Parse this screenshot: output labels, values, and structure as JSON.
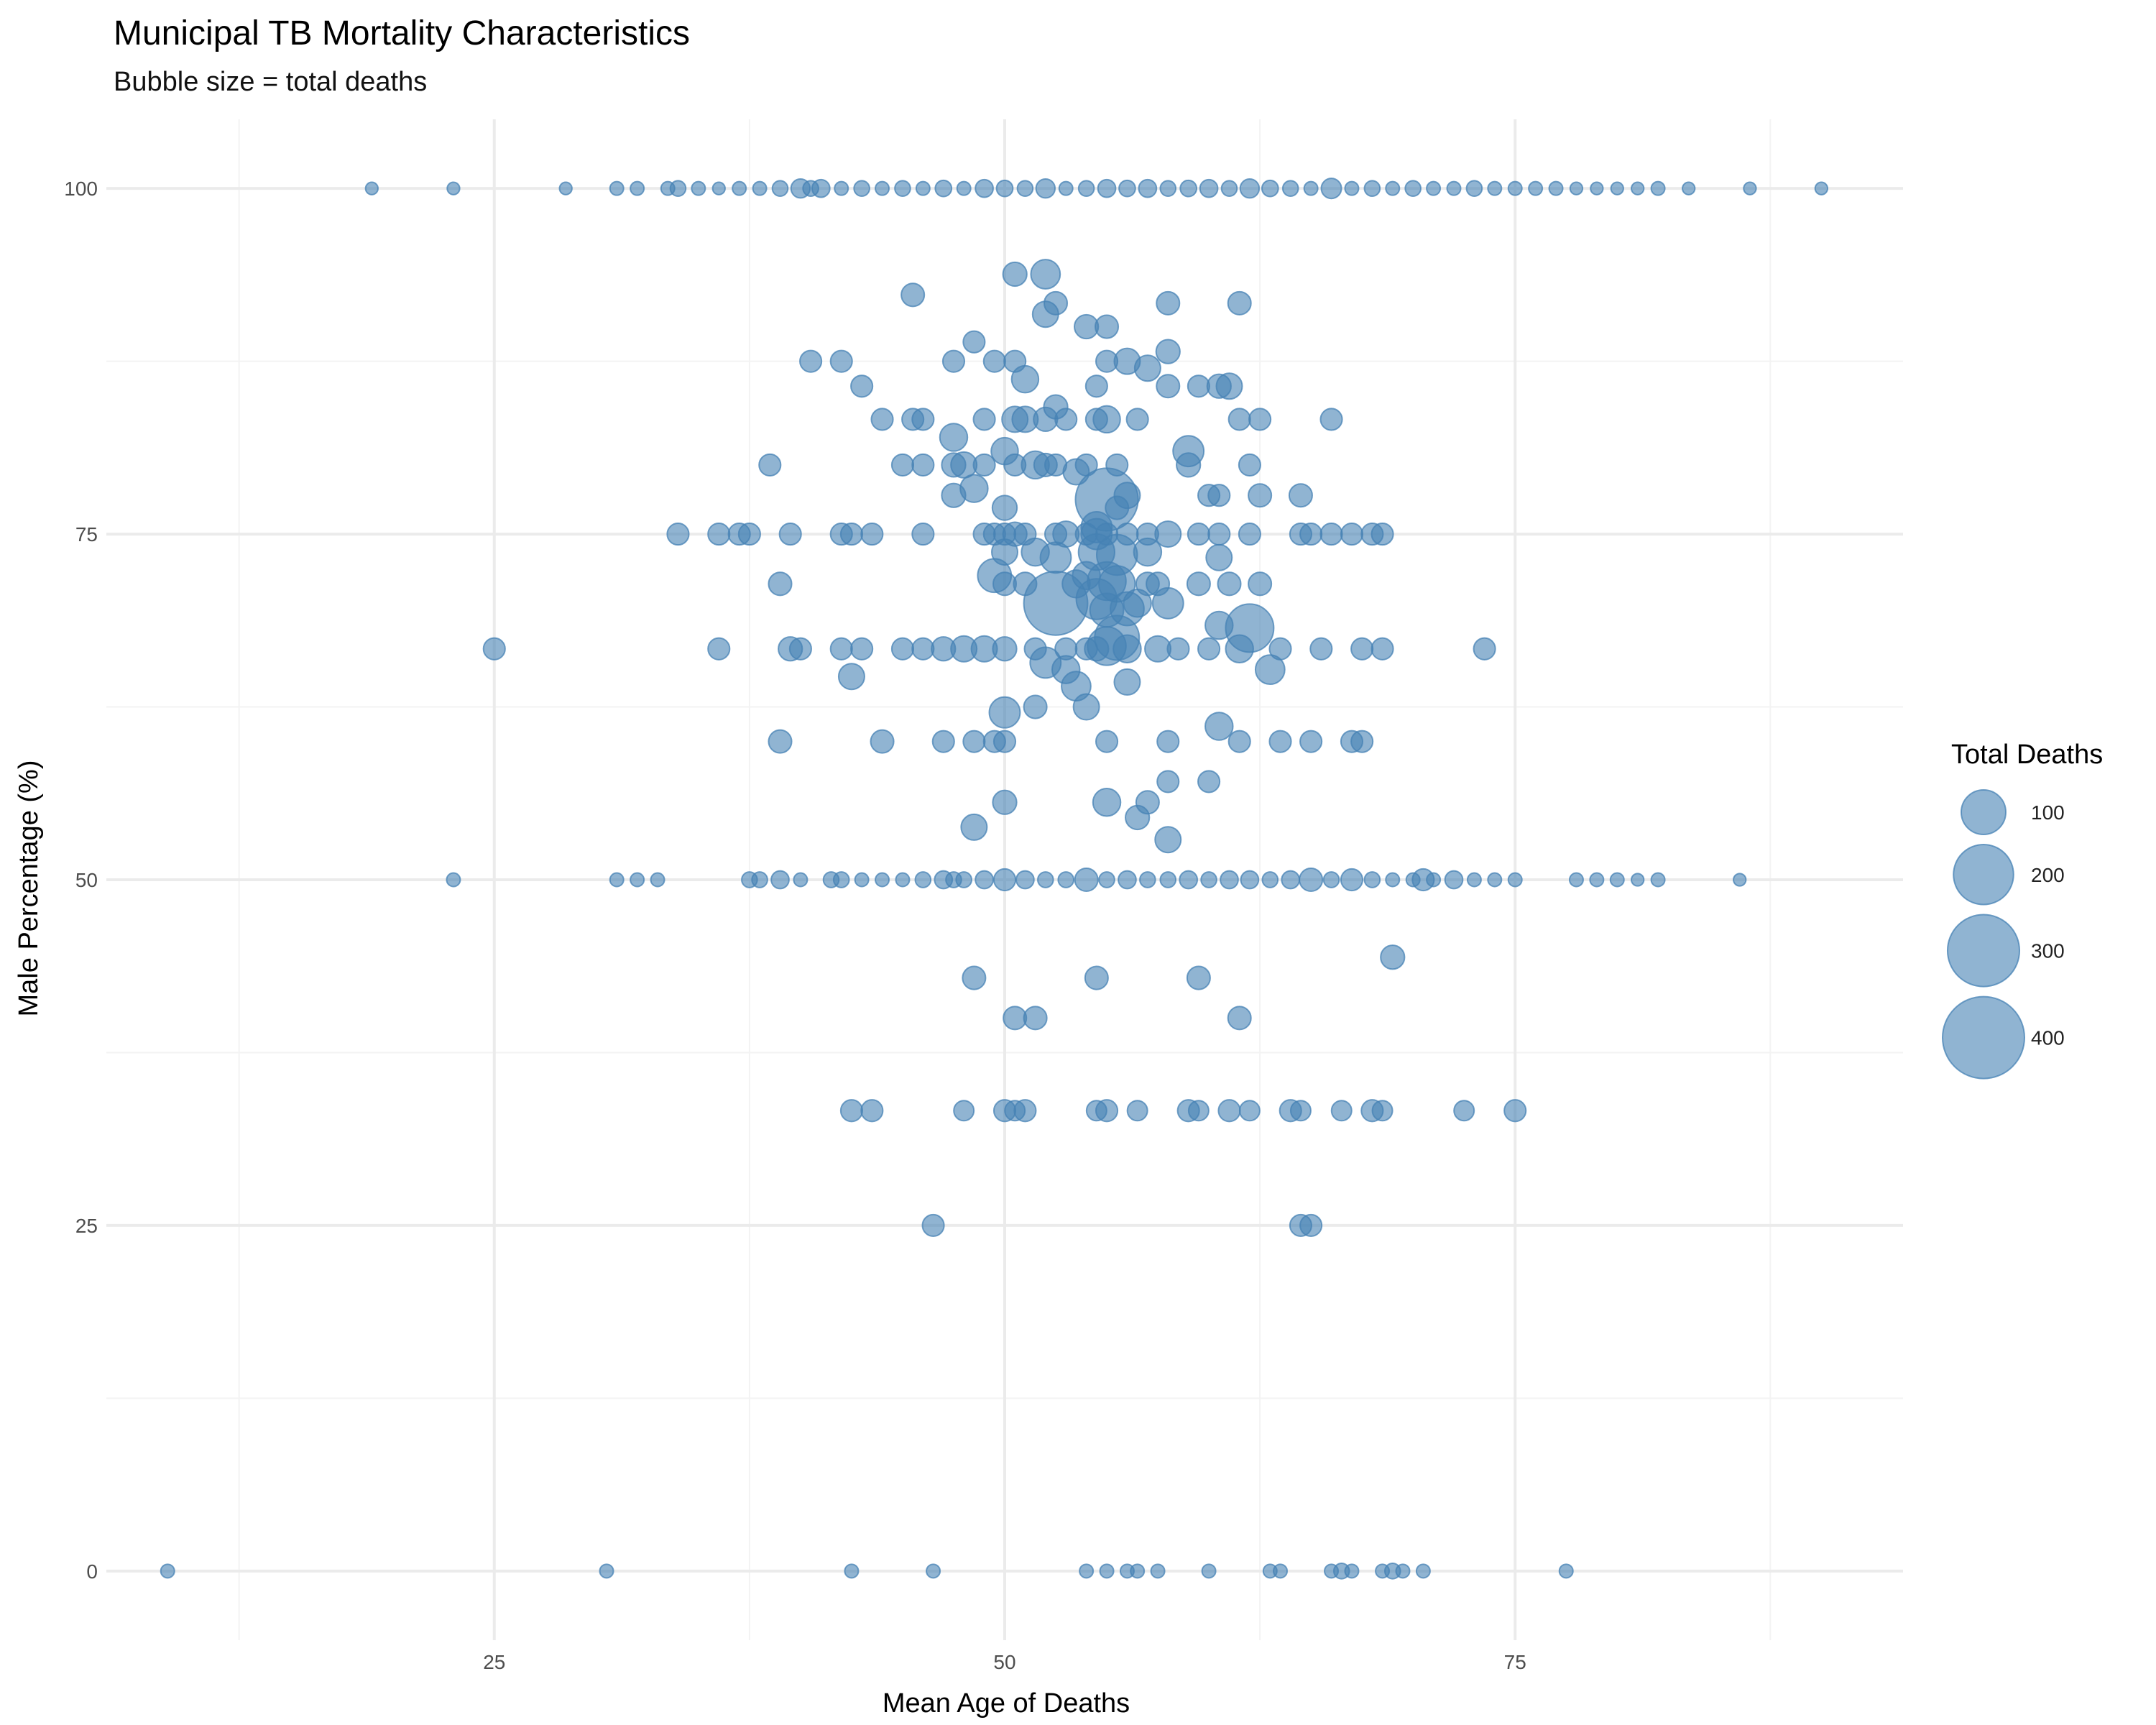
{
  "chart_data": {
    "type": "scatter",
    "title": "Municipal TB Mortality Characteristics",
    "subtitle": "Bubble size = total deaths",
    "xlabel": "Mean Age of Deaths",
    "ylabel": "Male Percentage (%)",
    "xlim": [
      6,
      94
    ],
    "ylim": [
      -5,
      105
    ],
    "x_ticks": [
      25,
      50,
      75
    ],
    "y_ticks": [
      0,
      25,
      50,
      75,
      100
    ],
    "grid": true,
    "legend": {
      "title": "Total Deaths",
      "placement": "right",
      "entries": [
        {
          "label": "100",
          "value": 100
        },
        {
          "label": "200",
          "value": 200
        },
        {
          "label": "300",
          "value": 300
        },
        {
          "label": "400",
          "value": 400
        }
      ]
    },
    "marker_color": "#4682b4",
    "points": [
      [
        19,
        100,
        2
      ],
      [
        23,
        100,
        2
      ],
      [
        28.5,
        100,
        2
      ],
      [
        31,
        100,
        3
      ],
      [
        32,
        100,
        3
      ],
      [
        33.5,
        100,
        3
      ],
      [
        34,
        100,
        5
      ],
      [
        35,
        100,
        3
      ],
      [
        36,
        100,
        2
      ],
      [
        37,
        100,
        3
      ],
      [
        38,
        100,
        3
      ],
      [
        39,
        100,
        5
      ],
      [
        40,
        100,
        10
      ],
      [
        40.5,
        100,
        5
      ],
      [
        41,
        100,
        8
      ],
      [
        42,
        100,
        3
      ],
      [
        43,
        100,
        5
      ],
      [
        44,
        100,
        3
      ],
      [
        45,
        100,
        5
      ],
      [
        46,
        100,
        3
      ],
      [
        47,
        100,
        6
      ],
      [
        48,
        100,
        3
      ],
      [
        49,
        100,
        8
      ],
      [
        50,
        100,
        6
      ],
      [
        51,
        100,
        5
      ],
      [
        52,
        100,
        10
      ],
      [
        53,
        100,
        3
      ],
      [
        54,
        100,
        5
      ],
      [
        55,
        100,
        8
      ],
      [
        56,
        100,
        6
      ],
      [
        57,
        100,
        8
      ],
      [
        58,
        100,
        5
      ],
      [
        59,
        100,
        6
      ],
      [
        60,
        100,
        8
      ],
      [
        61,
        100,
        5
      ],
      [
        62,
        100,
        10
      ],
      [
        63,
        100,
        6
      ],
      [
        64,
        100,
        5
      ],
      [
        65,
        100,
        3
      ],
      [
        66,
        100,
        12
      ],
      [
        67,
        100,
        3
      ],
      [
        68,
        100,
        5
      ],
      [
        69,
        100,
        3
      ],
      [
        70,
        100,
        5
      ],
      [
        71,
        100,
        3
      ],
      [
        72,
        100,
        3
      ],
      [
        73,
        100,
        5
      ],
      [
        74,
        100,
        3
      ],
      [
        75,
        100,
        3
      ],
      [
        76,
        100,
        3
      ],
      [
        77,
        100,
        3
      ],
      [
        78,
        100,
        2
      ],
      [
        79,
        100,
        2
      ],
      [
        80,
        100,
        2
      ],
      [
        81,
        100,
        2
      ],
      [
        82,
        100,
        3
      ],
      [
        83.5,
        100,
        2
      ],
      [
        86.5,
        100,
        2
      ],
      [
        90,
        100,
        2
      ],
      [
        50.5,
        93.8,
        20
      ],
      [
        52,
        93.8,
        35
      ],
      [
        45.5,
        92.3,
        18
      ],
      [
        52.5,
        91.7,
        18
      ],
      [
        58,
        91.7,
        18
      ],
      [
        61.5,
        91.7,
        18
      ],
      [
        52,
        90.9,
        25
      ],
      [
        54,
        90,
        20
      ],
      [
        55,
        90,
        18
      ],
      [
        48.5,
        88.9,
        15
      ],
      [
        58,
        88.2,
        20
      ],
      [
        40.5,
        87.5,
        15
      ],
      [
        42,
        87.5,
        15
      ],
      [
        47.5,
        87.5,
        15
      ],
      [
        49.5,
        87.5,
        15
      ],
      [
        50.5,
        87.5,
        15
      ],
      [
        55,
        87.5,
        15
      ],
      [
        56,
        87.5,
        25
      ],
      [
        57,
        87,
        25
      ],
      [
        51,
        86.2,
        28
      ],
      [
        43,
        85.7,
        15
      ],
      [
        54.5,
        85.7,
        15
      ],
      [
        58,
        85.7,
        18
      ],
      [
        59.5,
        85.7,
        15
      ],
      [
        60.5,
        85.7,
        20
      ],
      [
        61,
        85.7,
        25
      ],
      [
        44,
        83.3,
        15
      ],
      [
        45.5,
        83.3,
        15
      ],
      [
        46,
        83.3,
        15
      ],
      [
        49,
        83.3,
        15
      ],
      [
        50.5,
        83.3,
        25
      ],
      [
        51,
        83.3,
        25
      ],
      [
        52,
        83.3,
        20
      ],
      [
        53,
        83.3,
        15
      ],
      [
        54.5,
        83.3,
        15
      ],
      [
        55,
        83.3,
        28
      ],
      [
        56.5,
        83.3,
        15
      ],
      [
        61.5,
        83.3,
        15
      ],
      [
        62.5,
        83.3,
        15
      ],
      [
        66,
        83.3,
        15
      ],
      [
        52.5,
        84.2,
        20
      ],
      [
        47.5,
        82,
        30
      ],
      [
        50,
        81,
        28
      ],
      [
        59,
        81,
        40
      ],
      [
        38.5,
        80,
        15
      ],
      [
        45,
        80,
        15
      ],
      [
        46,
        80,
        15
      ],
      [
        47.5,
        80,
        20
      ],
      [
        48,
        80,
        25
      ],
      [
        49,
        80,
        15
      ],
      [
        50.5,
        80,
        15
      ],
      [
        51.5,
        80,
        30
      ],
      [
        52,
        80,
        18
      ],
      [
        52.5,
        80,
        15
      ],
      [
        54,
        80,
        15
      ],
      [
        55.5,
        80,
        15
      ],
      [
        59,
        80,
        20
      ],
      [
        62,
        80,
        15
      ],
      [
        53.5,
        79.5,
        25
      ],
      [
        48.5,
        78.3,
        30
      ],
      [
        47.5,
        77.8,
        20
      ],
      [
        55,
        77.5,
        220
      ],
      [
        56,
        77.8,
        25
      ],
      [
        60,
        77.8,
        15
      ],
      [
        60.5,
        77.8,
        15
      ],
      [
        62.5,
        77.8,
        18
      ],
      [
        64.5,
        77.8,
        18
      ],
      [
        50,
        76.9,
        22
      ],
      [
        55.5,
        76.9,
        18
      ],
      [
        34,
        75,
        15
      ],
      [
        36,
        75,
        15
      ],
      [
        37,
        75,
        15
      ],
      [
        37.5,
        75,
        15
      ],
      [
        39.5,
        75,
        15
      ],
      [
        42,
        75,
        15
      ],
      [
        42.5,
        75,
        15
      ],
      [
        43.5,
        75,
        15
      ],
      [
        46,
        75,
        15
      ],
      [
        49,
        75,
        15
      ],
      [
        49.5,
        75,
        15
      ],
      [
        50,
        75,
        15
      ],
      [
        50.5,
        75,
        20
      ],
      [
        51,
        75,
        15
      ],
      [
        52.5,
        75,
        15
      ],
      [
        53,
        75,
        25
      ],
      [
        54,
        75,
        15
      ],
      [
        54.5,
        75,
        40
      ],
      [
        55,
        75,
        15
      ],
      [
        56,
        75,
        15
      ],
      [
        57,
        75,
        15
      ],
      [
        58,
        75,
        25
      ],
      [
        59.5,
        75,
        15
      ],
      [
        60.5,
        75,
        15
      ],
      [
        62,
        75,
        15
      ],
      [
        64.5,
        75,
        15
      ],
      [
        65,
        75,
        15
      ],
      [
        66,
        75,
        15
      ],
      [
        67,
        75,
        15
      ],
      [
        68,
        75,
        15
      ],
      [
        68.5,
        75,
        15
      ],
      [
        54.5,
        75.5,
        40
      ],
      [
        50,
        73.7,
        25
      ],
      [
        51.5,
        73.7,
        30
      ],
      [
        54.5,
        73.7,
        60
      ],
      [
        57,
        73.7,
        30
      ],
      [
        60.5,
        73.3,
        25
      ],
      [
        52.5,
        73.3,
        40
      ],
      [
        55.5,
        73.5,
        80
      ],
      [
        49.5,
        72,
        50
      ],
      [
        54,
        72,
        30
      ],
      [
        50,
        71.4,
        18
      ],
      [
        51,
        71.4,
        18
      ],
      [
        55,
        71.6,
        70
      ],
      [
        57,
        71.4,
        18
      ],
      [
        57.5,
        71.4,
        18
      ],
      [
        59.5,
        71.4,
        18
      ],
      [
        61,
        71.4,
        18
      ],
      [
        62.5,
        71.4,
        18
      ],
      [
        39,
        71.4,
        18
      ],
      [
        53.5,
        71.4,
        30
      ],
      [
        55.5,
        71.4,
        60
      ],
      [
        52.5,
        70,
        230
      ],
      [
        54.5,
        70.3,
        80
      ],
      [
        56.5,
        70,
        30
      ],
      [
        58,
        70,
        40
      ],
      [
        55,
        69.5,
        50
      ],
      [
        56,
        69.6,
        50
      ],
      [
        60.5,
        68.4,
        30
      ],
      [
        62,
        68.2,
        120
      ],
      [
        55.5,
        67.5,
        100
      ],
      [
        55,
        66.9,
        70
      ],
      [
        25,
        66.7,
        15
      ],
      [
        36,
        66.7,
        15
      ],
      [
        39.5,
        66.7,
        20
      ],
      [
        40,
        66.7,
        15
      ],
      [
        42,
        66.7,
        15
      ],
      [
        43,
        66.7,
        15
      ],
      [
        45,
        66.7,
        15
      ],
      [
        46,
        66.7,
        15
      ],
      [
        47,
        66.7,
        20
      ],
      [
        48,
        66.7,
        25
      ],
      [
        49,
        66.7,
        25
      ],
      [
        50,
        66.7,
        20
      ],
      [
        51.5,
        66.7,
        15
      ],
      [
        53,
        66.7,
        15
      ],
      [
        54,
        66.7,
        15
      ],
      [
        54.5,
        66.7,
        20
      ],
      [
        56,
        66.7,
        30
      ],
      [
        57.5,
        66.7,
        25
      ],
      [
        58.5,
        66.7,
        15
      ],
      [
        60,
        66.7,
        15
      ],
      [
        61.5,
        66.7,
        30
      ],
      [
        63.5,
        66.7,
        15
      ],
      [
        65.5,
        66.7,
        15
      ],
      [
        67.5,
        66.7,
        15
      ],
      [
        68.5,
        66.7,
        15
      ],
      [
        73.5,
        66.7,
        15
      ],
      [
        52,
        65.7,
        40
      ],
      [
        53,
        65.2,
        30
      ],
      [
        63,
        65.2,
        35
      ],
      [
        42.5,
        64.7,
        25
      ],
      [
        56,
        64.3,
        25
      ],
      [
        53.5,
        64,
        35
      ],
      [
        54,
        62.5,
        25
      ],
      [
        51.5,
        62.5,
        18
      ],
      [
        50,
        62.1,
        40
      ],
      [
        60.5,
        61.1,
        30
      ],
      [
        39,
        60,
        18
      ],
      [
        44,
        60,
        18
      ],
      [
        47,
        60,
        15
      ],
      [
        48.5,
        60,
        15
      ],
      [
        49.5,
        60,
        15
      ],
      [
        50,
        60,
        15
      ],
      [
        55,
        60,
        15
      ],
      [
        58,
        60,
        15
      ],
      [
        61.5,
        60,
        15
      ],
      [
        63.5,
        60,
        15
      ],
      [
        65,
        60,
        15
      ],
      [
        67,
        60,
        15
      ],
      [
        67.5,
        60,
        15
      ],
      [
        58,
        57.1,
        15
      ],
      [
        60,
        57.1,
        15
      ],
      [
        50,
        55.6,
        20
      ],
      [
        55,
        55.6,
        30
      ],
      [
        57,
        55.6,
        18
      ],
      [
        56.5,
        54.5,
        20
      ],
      [
        48.5,
        53.8,
        25
      ],
      [
        58,
        52.9,
        25
      ],
      [
        23,
        50,
        3
      ],
      [
        31,
        50,
        3
      ],
      [
        32,
        50,
        3
      ],
      [
        33,
        50,
        3
      ],
      [
        37.5,
        50,
        5
      ],
      [
        38,
        50,
        5
      ],
      [
        39,
        50,
        8
      ],
      [
        40,
        50,
        3
      ],
      [
        41.5,
        50,
        5
      ],
      [
        42,
        50,
        5
      ],
      [
        43,
        50,
        3
      ],
      [
        44,
        50,
        3
      ],
      [
        45,
        50,
        3
      ],
      [
        46,
        50,
        5
      ],
      [
        47,
        50,
        8
      ],
      [
        47.5,
        50,
        5
      ],
      [
        48,
        50,
        5
      ],
      [
        49,
        50,
        8
      ],
      [
        50,
        50,
        15
      ],
      [
        51,
        50,
        8
      ],
      [
        52,
        50,
        5
      ],
      [
        53,
        50,
        5
      ],
      [
        54,
        50,
        18
      ],
      [
        55,
        50,
        5
      ],
      [
        56,
        50,
        8
      ],
      [
        57,
        50,
        5
      ],
      [
        58,
        50,
        5
      ],
      [
        59,
        50,
        8
      ],
      [
        60,
        50,
        5
      ],
      [
        61,
        50,
        8
      ],
      [
        62,
        50,
        8
      ],
      [
        63,
        50,
        5
      ],
      [
        64,
        50,
        8
      ],
      [
        65,
        50,
        18
      ],
      [
        66,
        50,
        5
      ],
      [
        67,
        50,
        15
      ],
      [
        68,
        50,
        5
      ],
      [
        69,
        50,
        3
      ],
      [
        70,
        50,
        3
      ],
      [
        70.5,
        50,
        15
      ],
      [
        71,
        50,
        3
      ],
      [
        72,
        50,
        8
      ],
      [
        73,
        50,
        3
      ],
      [
        74,
        50,
        3
      ],
      [
        75,
        50,
        3
      ],
      [
        78,
        50,
        3
      ],
      [
        79,
        50,
        3
      ],
      [
        80,
        50,
        3
      ],
      [
        81,
        50,
        2
      ],
      [
        82,
        50,
        3
      ],
      [
        86,
        50,
        2
      ],
      [
        69,
        44.4,
        20
      ],
      [
        48.5,
        42.9,
        18
      ],
      [
        54.5,
        42.9,
        18
      ],
      [
        59.5,
        42.9,
        18
      ],
      [
        50.5,
        40,
        18
      ],
      [
        51.5,
        40,
        18
      ],
      [
        61.5,
        40,
        18
      ],
      [
        42.5,
        33.3,
        15
      ],
      [
        43.5,
        33.3,
        15
      ],
      [
        48,
        33.3,
        12
      ],
      [
        50,
        33.3,
        15
      ],
      [
        50.5,
        33.3,
        12
      ],
      [
        51,
        33.3,
        15
      ],
      [
        54.5,
        33.3,
        12
      ],
      [
        55,
        33.3,
        15
      ],
      [
        56.5,
        33.3,
        12
      ],
      [
        59,
        33.3,
        15
      ],
      [
        59.5,
        33.3,
        12
      ],
      [
        61,
        33.3,
        15
      ],
      [
        62,
        33.3,
        12
      ],
      [
        64,
        33.3,
        15
      ],
      [
        64.5,
        33.3,
        12
      ],
      [
        66.5,
        33.3,
        12
      ],
      [
        68,
        33.3,
        15
      ],
      [
        68.5,
        33.3,
        12
      ],
      [
        72.5,
        33.3,
        12
      ],
      [
        75,
        33.3,
        15
      ],
      [
        46.5,
        25,
        15
      ],
      [
        64.5,
        25,
        15
      ],
      [
        65,
        25,
        15
      ],
      [
        9,
        0,
        3
      ],
      [
        30.5,
        0,
        3
      ],
      [
        42.5,
        0,
        3
      ],
      [
        46.5,
        0,
        3
      ],
      [
        54,
        0,
        3
      ],
      [
        55,
        0,
        3
      ],
      [
        56,
        0,
        3
      ],
      [
        56.5,
        0,
        3
      ],
      [
        57.5,
        0,
        3
      ],
      [
        60,
        0,
        3
      ],
      [
        63,
        0,
        3
      ],
      [
        63.5,
        0,
        3
      ],
      [
        66,
        0,
        3
      ],
      [
        66.5,
        0,
        5
      ],
      [
        67,
        0,
        3
      ],
      [
        68.5,
        0,
        3
      ],
      [
        69,
        0,
        5
      ],
      [
        69.5,
        0,
        3
      ],
      [
        70.5,
        0,
        3
      ],
      [
        77.5,
        0,
        3
      ]
    ]
  }
}
